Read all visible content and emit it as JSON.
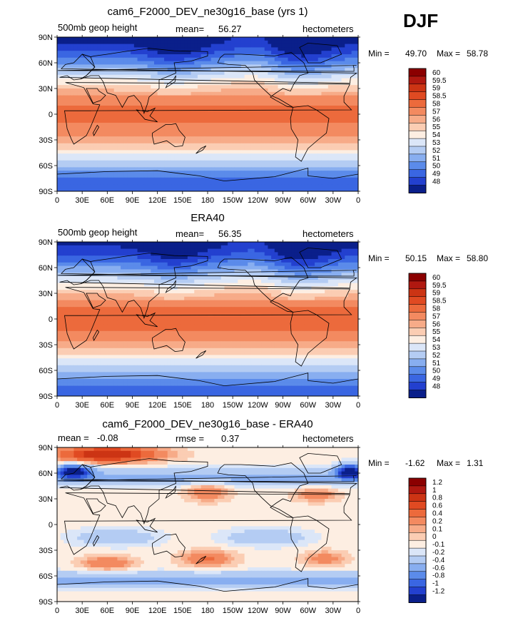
{
  "season": "DJF",
  "chart_data": [
    {
      "type": "heatmap",
      "title": "cam6_F2000_DEV_ne30g16_base (yrs 1)",
      "left_label": "500mb geop height",
      "center_label": "mean=",
      "center_value": "56.27",
      "right_label": "hectometers",
      "min_text": "Min =",
      "min_value": "49.70",
      "max_text": "Max =",
      "max_value": "58.78",
      "min": 49.7,
      "max": 58.78,
      "x_ticks": [
        "0",
        "30E",
        "60E",
        "90E",
        "120E",
        "150E",
        "180",
        "150W",
        "120W",
        "90W",
        "60W",
        "30W",
        "0"
      ],
      "y_ticks": [
        "90N",
        "60N",
        "30N",
        "0",
        "30S",
        "60S",
        "90S"
      ],
      "colorbar_labels": [
        "60",
        "59.5",
        "59",
        "58.5",
        "58",
        "57",
        "56",
        "55",
        "54",
        "53",
        "52",
        "51",
        "50",
        "49",
        "48"
      ],
      "colorbar_colors": [
        "#8b0000",
        "#b01810",
        "#cc3414",
        "#e04a22",
        "#ec6a3c",
        "#f38a60",
        "#f7ab88",
        "#fbcdb3",
        "#fdeee2",
        "#dbe6f8",
        "#b4ccf3",
        "#88aef0",
        "#5b8bea",
        "#3a66e2",
        "#2340cf",
        "#0a1f8a"
      ]
    },
    {
      "type": "heatmap",
      "title": "ERA40",
      "left_label": "500mb geop height",
      "center_label": "mean=",
      "center_value": "56.35",
      "right_label": "hectometers",
      "min_text": "Min =",
      "min_value": "50.15",
      "max_text": "Max =",
      "max_value": "58.80",
      "min": 50.15,
      "max": 58.8,
      "x_ticks": [
        "0",
        "30E",
        "60E",
        "90E",
        "120E",
        "150E",
        "180",
        "150W",
        "120W",
        "90W",
        "60W",
        "30W",
        "0"
      ],
      "y_ticks": [
        "90N",
        "60N",
        "30N",
        "0",
        "30S",
        "60S",
        "90S"
      ],
      "colorbar_labels": [
        "60",
        "59.5",
        "59",
        "58.5",
        "58",
        "57",
        "56",
        "55",
        "54",
        "53",
        "52",
        "51",
        "50",
        "49",
        "48"
      ],
      "colorbar_colors": [
        "#8b0000",
        "#b01810",
        "#cc3414",
        "#e04a22",
        "#ec6a3c",
        "#f38a60",
        "#f7ab88",
        "#fbcdb3",
        "#fdeee2",
        "#dbe6f8",
        "#b4ccf3",
        "#88aef0",
        "#5b8bea",
        "#3a66e2",
        "#2340cf",
        "#0a1f8a"
      ]
    },
    {
      "type": "heatmap",
      "title": "cam6_F2000_DEV_ne30g16_base - ERA40",
      "left_label": "mean =",
      "left_value": "-0.08",
      "center_label": "rmse =",
      "center_value": "0.37",
      "right_label": "hectometers",
      "min_text": "Min =",
      "min_value": "-1.62",
      "max_text": "Max =",
      "max_value": "1.31",
      "min": -1.62,
      "max": 1.31,
      "x_ticks": [
        "0",
        "30E",
        "60E",
        "90E",
        "120E",
        "150E",
        "180",
        "150W",
        "120W",
        "90W",
        "60W",
        "30W",
        "0"
      ],
      "y_ticks": [
        "90N",
        "60N",
        "30N",
        "0",
        "30S",
        "60S",
        "90S"
      ],
      "colorbar_labels": [
        "1.2",
        "1",
        "0.8",
        "0.6",
        "0.4",
        "0.2",
        "0.1",
        "0",
        "-0.1",
        "-0.2",
        "-0.4",
        "-0.6",
        "-0.8",
        "-1",
        "-1.2"
      ],
      "colorbar_colors": [
        "#8b0000",
        "#b01810",
        "#cc3414",
        "#e04a22",
        "#ec6a3c",
        "#f38a60",
        "#f7ab88",
        "#fbcdb3",
        "#fdeee2",
        "#dbe6f8",
        "#b4ccf3",
        "#88aef0",
        "#5b8bea",
        "#3a66e2",
        "#2340cf",
        "#0a1f8a"
      ]
    }
  ]
}
